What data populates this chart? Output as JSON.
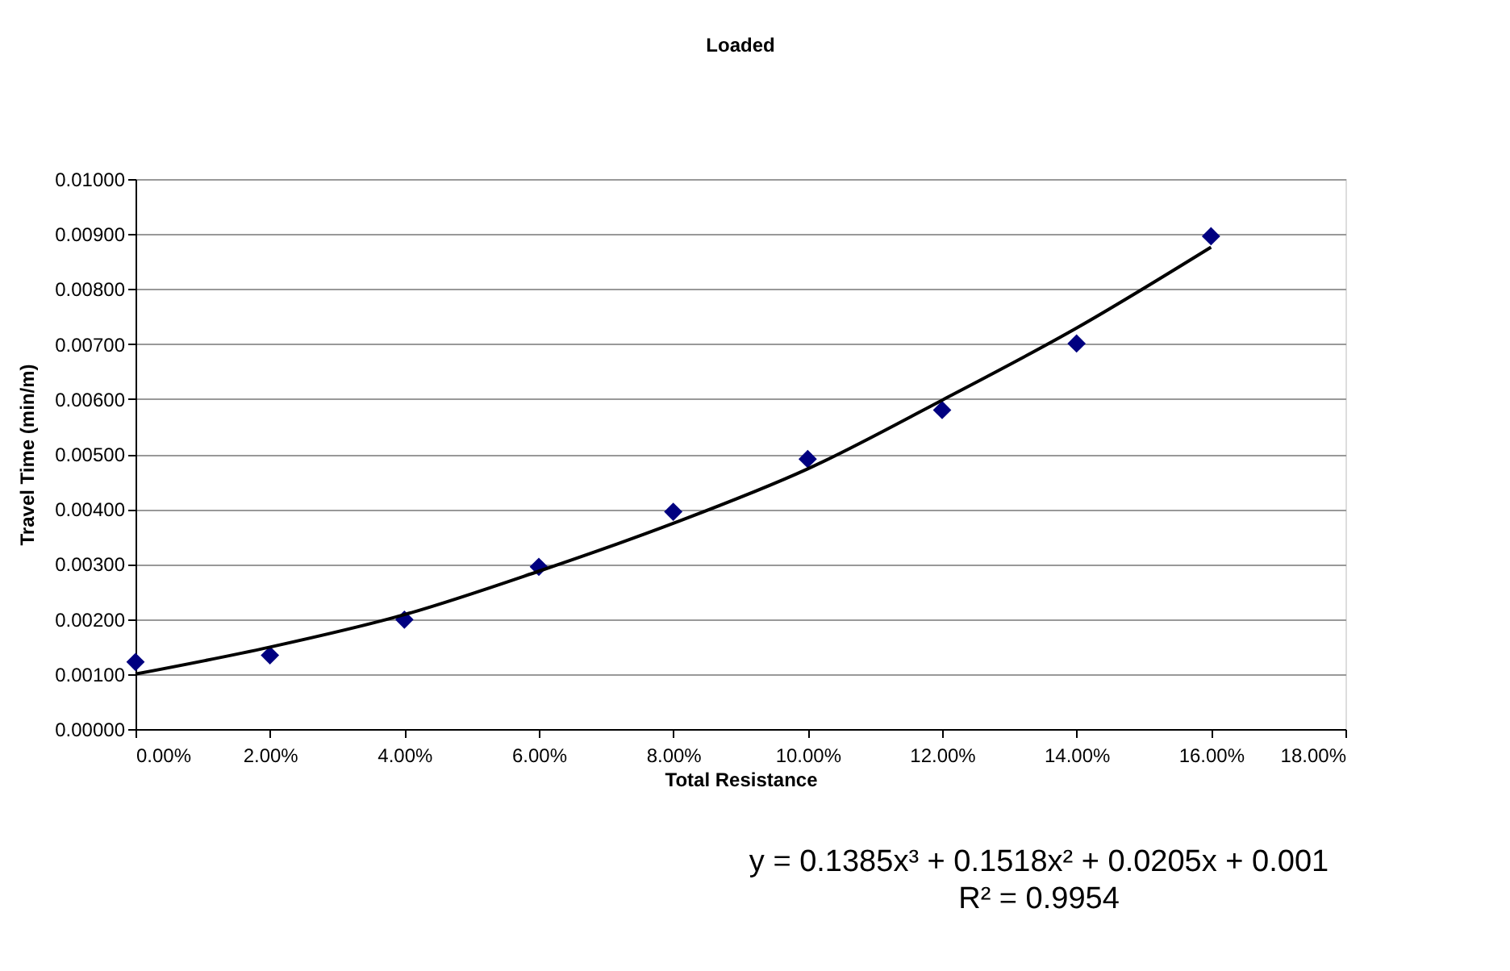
{
  "chart_data": {
    "type": "scatter",
    "title": "Loaded",
    "xlabel": "Total Resistance",
    "ylabel": "Travel Time (min/m)",
    "x": [
      0,
      0.02,
      0.04,
      0.06,
      0.08,
      0.1,
      0.12,
      0.14,
      0.16
    ],
    "series": [
      {
        "type": "scatter",
        "color": "#000080",
        "marker": "diamond",
        "values": [
          0.00122,
          0.00134,
          0.00199,
          0.00295,
          0.00395,
          0.00491,
          0.0058,
          0.00701,
          0.00896
        ]
      },
      {
        "type": "line",
        "color": "#000000",
        "marker": "none",
        "line_style": "solid",
        "x": [
          0,
          0.02,
          0.04,
          0.06,
          0.08,
          0.1,
          0.12,
          0.14,
          0.16
        ],
        "values": [
          0.001,
          0.00149,
          0.00208,
          0.00287,
          0.00374,
          0.00473,
          0.00598,
          0.00729,
          0.00876
        ]
      }
    ],
    "xlim": [
      0,
      0.18
    ],
    "xticks": [
      {
        "value": 0,
        "label": "0.00%"
      },
      {
        "value": 0.02,
        "label": "2.00%"
      },
      {
        "value": 0.04,
        "label": "4.00%"
      },
      {
        "value": 0.06,
        "label": "6.00%"
      },
      {
        "value": 0.08,
        "label": "8.00%"
      },
      {
        "value": 0.1,
        "label": "10.00%"
      },
      {
        "value": 0.12,
        "label": "12.00%"
      },
      {
        "value": 0.14,
        "label": "14.00%"
      },
      {
        "value": 0.16,
        "label": "16.00%"
      },
      {
        "value": 0.18,
        "label": "18.00%"
      }
    ],
    "ylim": [
      0,
      0.01
    ],
    "yticks": [
      {
        "value": 0,
        "label": "0.00000"
      },
      {
        "value": 0.001,
        "label": "0.00100"
      },
      {
        "value": 0.002,
        "label": "0.00200"
      },
      {
        "value": 0.003,
        "label": "0.00300"
      },
      {
        "value": 0.004,
        "label": "0.00400"
      },
      {
        "value": 0.005,
        "label": "0.00500"
      },
      {
        "value": 0.006,
        "label": "0.00600"
      },
      {
        "value": 0.007,
        "label": "0.00700"
      },
      {
        "value": 0.008,
        "label": "0.00800"
      },
      {
        "value": 0.009,
        "label": "0.00900"
      },
      {
        "value": 0.01,
        "label": "0.01000"
      }
    ],
    "grid": "y",
    "annotations": [
      "y = 0.1385x³ + 0.1518x² + 0.0205x + 0.001",
      "R² = 0.9954"
    ]
  }
}
